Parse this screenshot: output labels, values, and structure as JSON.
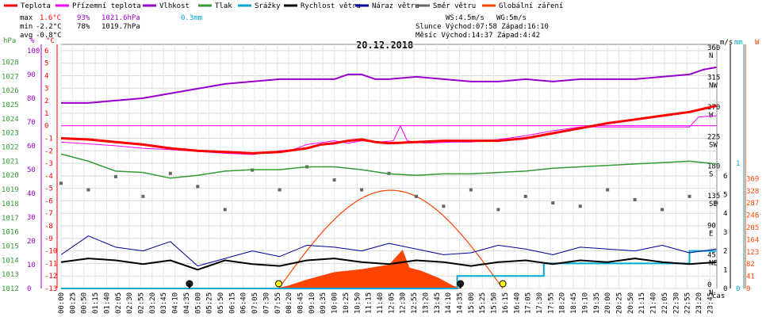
{
  "chart_data": {
    "type": "line",
    "title": "20.12.2018",
    "legend": [
      {
        "label": "Teplota",
        "color": "#ff0000"
      },
      {
        "label": "Přízemní teplota",
        "color": "#ff00ff"
      },
      {
        "label": "Vlhkost",
        "color": "#9900cc"
      },
      {
        "label": "Tlak",
        "color": "#339933"
      },
      {
        "label": "Srážky",
        "color": "#00aacc"
      },
      {
        "label": "Rychlost větru",
        "color": "#000000"
      },
      {
        "label": "Náraz větru",
        "color": "#000099"
      },
      {
        "label": "Směr větru",
        "color": "#666666"
      },
      {
        "label": "Globální záření",
        "color": "#ff4400"
      }
    ],
    "stats": {
      "max": {
        "label": "max",
        "temp": "1.6°C",
        "hum": "93%",
        "press": "1021.6hPa",
        "rain": "0.3mm"
      },
      "min": {
        "label": "min",
        "temp": "-2.2°C",
        "hum": "78%",
        "press": "1019.7hPa"
      },
      "avg": {
        "label": "avg",
        "temp": "-0.8°C"
      }
    },
    "info": {
      "ws": "WS:4.5m/s",
      "wg": "WG:5m/s",
      "sun": "Slunce Východ:07:58  Západ:16:10",
      "moon": "Měsíc  Východ:14:37  Západ:4:42"
    },
    "axes": {
      "hpa_unit": "hPa",
      "hpa_ticks": [
        1012,
        1013,
        1014,
        1015,
        1016,
        1017,
        1018,
        1019,
        1020,
        1021,
        1022,
        1023,
        1024,
        1025,
        1026,
        1027,
        1028
      ],
      "pct_unit": "%",
      "pct_ticks": [
        0,
        10,
        20,
        30,
        40,
        50,
        60,
        70,
        80,
        90,
        100
      ],
      "c_unit": "°C",
      "c_ticks": [
        -13,
        -12,
        -11,
        -10,
        -9,
        -8,
        -7,
        -6,
        -5,
        -4,
        -3,
        -2,
        -1,
        0,
        1,
        2,
        3,
        4,
        5,
        6
      ],
      "ms_unit": "m/s",
      "ms_ticks": [
        0,
        1,
        2,
        3,
        4,
        5,
        6
      ],
      "mm_unit": "mm",
      "mm_ticks": [
        0,
        1
      ],
      "w_unit": "W",
      "w_ticks": [
        0,
        41,
        82,
        123,
        164,
        205,
        246,
        287,
        328,
        369
      ],
      "dir_ticks": [
        {
          "deg": 0,
          "label": "N"
        },
        {
          "deg": 45,
          "label": "NE"
        },
        {
          "deg": 90,
          "label": "E"
        },
        {
          "deg": 135,
          "label": "SE"
        },
        {
          "deg": 180,
          "label": "S"
        },
        {
          "deg": 225,
          "label": "SW"
        },
        {
          "deg": 270,
          "label": "W"
        },
        {
          "deg": 315,
          "label": "NW"
        },
        {
          "deg": 360,
          "label": "N"
        }
      ],
      "time_label": "čas",
      "x_ticks": [
        "00:00",
        "00:25",
        "00:50",
        "01:15",
        "01:40",
        "02:05",
        "02:30",
        "02:55",
        "03:20",
        "03:45",
        "04:10",
        "04:35",
        "05:00",
        "05:25",
        "05:50",
        "06:15",
        "06:40",
        "07:05",
        "07:30",
        "07:55",
        "08:20",
        "08:45",
        "09:10",
        "09:35",
        "10:00",
        "10:25",
        "10:50",
        "11:15",
        "11:40",
        "12:05",
        "12:30",
        "12:55",
        "13:20",
        "13:45",
        "14:10",
        "14:35",
        "15:00",
        "15:25",
        "15:50",
        "16:15",
        "16:40",
        "17:05",
        "17:30",
        "17:55",
        "18:20",
        "18:45",
        "19:10",
        "19:35",
        "20:00",
        "20:25",
        "20:50",
        "21:15",
        "21:40",
        "22:05",
        "22:30",
        "22:55",
        "23:20",
        "23:45"
      ]
    },
    "series": {
      "temperature": [
        [
          0,
          -1.0
        ],
        [
          60,
          -1.1
        ],
        [
          120,
          -1.3
        ],
        [
          180,
          -1.5
        ],
        [
          240,
          -1.8
        ],
        [
          300,
          -2.0
        ],
        [
          360,
          -2.1
        ],
        [
          420,
          -2.2
        ],
        [
          480,
          -2.1
        ],
        [
          540,
          -1.8
        ],
        [
          570,
          -1.5
        ],
        [
          600,
          -1.4
        ],
        [
          630,
          -1.2
        ],
        [
          660,
          -1.1
        ],
        [
          690,
          -1.3
        ],
        [
          720,
          -1.4
        ],
        [
          780,
          -1.3
        ],
        [
          840,
          -1.2
        ],
        [
          900,
          -1.2
        ],
        [
          960,
          -1.2
        ],
        [
          1020,
          -1.0
        ],
        [
          1080,
          -0.6
        ],
        [
          1140,
          -0.2
        ],
        [
          1200,
          0.2
        ],
        [
          1260,
          0.5
        ],
        [
          1320,
          0.8
        ],
        [
          1380,
          1.1
        ],
        [
          1439,
          1.6
        ]
      ],
      "ground_temperature": [
        [
          0,
          -1.3
        ],
        [
          120,
          -1.6
        ],
        [
          180,
          -1.8
        ],
        [
          240,
          -1.9
        ],
        [
          360,
          -2.2
        ],
        [
          420,
          -2.3
        ],
        [
          480,
          -2.0
        ],
        [
          510,
          -1.9
        ],
        [
          540,
          -1.5
        ],
        [
          600,
          -1.2
        ],
        [
          630,
          -1.4
        ],
        [
          660,
          -1.2
        ],
        [
          700,
          -1.3
        ],
        [
          730,
          -1.2
        ],
        [
          745,
          0.0
        ],
        [
          760,
          -1.2
        ],
        [
          800,
          -1.4
        ],
        [
          860,
          -1.3
        ],
        [
          900,
          -1.3
        ],
        [
          960,
          -1.1
        ],
        [
          1020,
          -0.8
        ],
        [
          1080,
          -0.4
        ],
        [
          1140,
          -0.1
        ],
        [
          1380,
          -0.1
        ],
        [
          1400,
          0.7
        ],
        [
          1439,
          0.8
        ]
      ],
      "humidity": [
        [
          0,
          78
        ],
        [
          60,
          78
        ],
        [
          120,
          79
        ],
        [
          180,
          80
        ],
        [
          240,
          82
        ],
        [
          300,
          84
        ],
        [
          360,
          86
        ],
        [
          420,
          87
        ],
        [
          480,
          88
        ],
        [
          540,
          88
        ],
        [
          600,
          88
        ],
        [
          630,
          90
        ],
        [
          660,
          90
        ],
        [
          690,
          88
        ],
        [
          720,
          88
        ],
        [
          780,
          89
        ],
        [
          840,
          88
        ],
        [
          900,
          87
        ],
        [
          960,
          87
        ],
        [
          1020,
          88
        ],
        [
          1080,
          87
        ],
        [
          1140,
          88
        ],
        [
          1200,
          88
        ],
        [
          1260,
          88
        ],
        [
          1320,
          89
        ],
        [
          1380,
          90
        ],
        [
          1410,
          92
        ],
        [
          1439,
          93
        ]
      ],
      "pressure": [
        [
          0,
          1021.5
        ],
        [
          60,
          1021.0
        ],
        [
          120,
          1020.3
        ],
        [
          180,
          1020.2
        ],
        [
          240,
          1019.8
        ],
        [
          300,
          1020.0
        ],
        [
          360,
          1020.3
        ],
        [
          420,
          1020.4
        ],
        [
          480,
          1020.4
        ],
        [
          540,
          1020.6
        ],
        [
          600,
          1020.6
        ],
        [
          660,
          1020.4
        ],
        [
          720,
          1020.1
        ],
        [
          780,
          1020.0
        ],
        [
          840,
          1020.1
        ],
        [
          900,
          1020.1
        ],
        [
          960,
          1020.2
        ],
        [
          1020,
          1020.3
        ],
        [
          1080,
          1020.5
        ],
        [
          1140,
          1020.6
        ],
        [
          1200,
          1020.7
        ],
        [
          1260,
          1020.8
        ],
        [
          1320,
          1020.9
        ],
        [
          1380,
          1021.0
        ],
        [
          1439,
          1020.8
        ]
      ],
      "rain": [
        [
          0,
          0
        ],
        [
          870,
          0
        ],
        [
          870,
          0.1
        ],
        [
          1060,
          0.1
        ],
        [
          1060,
          0.2
        ],
        [
          1380,
          0.2
        ],
        [
          1380,
          0.3
        ],
        [
          1439,
          0.3
        ]
      ],
      "wind_speed": [
        [
          0,
          1.4
        ],
        [
          60,
          1.6
        ],
        [
          120,
          1.5
        ],
        [
          180,
          1.3
        ],
        [
          240,
          1.5
        ],
        [
          300,
          1.0
        ],
        [
          360,
          1.5
        ],
        [
          420,
          1.3
        ],
        [
          480,
          1.2
        ],
        [
          540,
          1.5
        ],
        [
          600,
          1.6
        ],
        [
          660,
          1.4
        ],
        [
          720,
          1.3
        ],
        [
          780,
          1.5
        ],
        [
          840,
          1.4
        ],
        [
          900,
          1.2
        ],
        [
          960,
          1.4
        ],
        [
          1020,
          1.5
        ],
        [
          1080,
          1.3
        ],
        [
          1140,
          1.5
        ],
        [
          1200,
          1.4
        ],
        [
          1260,
          1.6
        ],
        [
          1320,
          1.4
        ],
        [
          1380,
          1.3
        ],
        [
          1439,
          1.4
        ]
      ],
      "wind_gust": [
        [
          0,
          1.8
        ],
        [
          60,
          2.8
        ],
        [
          120,
          2.2
        ],
        [
          180,
          2.0
        ],
        [
          240,
          2.5
        ],
        [
          300,
          1.2
        ],
        [
          360,
          1.6
        ],
        [
          420,
          2.0
        ],
        [
          480,
          1.7
        ],
        [
          540,
          2.3
        ],
        [
          600,
          2.2
        ],
        [
          660,
          2.0
        ],
        [
          720,
          2.4
        ],
        [
          780,
          2.1
        ],
        [
          840,
          1.8
        ],
        [
          900,
          1.9
        ],
        [
          960,
          2.3
        ],
        [
          1020,
          2.1
        ],
        [
          1080,
          1.8
        ],
        [
          1140,
          2.2
        ],
        [
          1200,
          2.1
        ],
        [
          1260,
          2.0
        ],
        [
          1320,
          2.3
        ],
        [
          1380,
          1.9
        ],
        [
          1439,
          2.1
        ]
      ],
      "solar": [
        [
          470,
          0
        ],
        [
          500,
          10
        ],
        [
          540,
          30
        ],
        [
          600,
          55
        ],
        [
          660,
          65
        ],
        [
          720,
          80
        ],
        [
          750,
          130
        ],
        [
          765,
          70
        ],
        [
          790,
          60
        ],
        [
          830,
          35
        ],
        [
          860,
          10
        ],
        [
          880,
          0
        ]
      ],
      "wind_direction": [
        [
          0,
          160
        ],
        [
          60,
          150
        ],
        [
          120,
          170
        ],
        [
          180,
          140
        ],
        [
          240,
          175
        ],
        [
          300,
          155
        ],
        [
          360,
          120
        ],
        [
          420,
          180
        ],
        [
          480,
          150
        ],
        [
          540,
          185
        ],
        [
          600,
          165
        ],
        [
          660,
          150
        ],
        [
          720,
          175
        ],
        [
          780,
          140
        ],
        [
          840,
          125
        ],
        [
          900,
          150
        ],
        [
          960,
          120
        ],
        [
          1020,
          140
        ],
        [
          1080,
          130
        ],
        [
          1140,
          125
        ],
        [
          1200,
          150
        ],
        [
          1260,
          135
        ],
        [
          1320,
          120
        ],
        [
          1380,
          140
        ],
        [
          1439,
          130
        ]
      ]
    },
    "markers": {
      "sun_rise": "07:58",
      "sun_set": "16:10",
      "moon_rise": "14:37",
      "moon_set": "04:42"
    },
    "y_range_celsius": [
      -13,
      6.5
    ],
    "grid": true
  }
}
